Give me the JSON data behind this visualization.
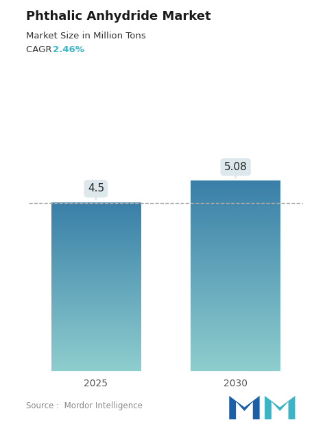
{
  "title": "Phthalic Anhydride Market",
  "subtitle": "Market Size in Million Tons",
  "cagr_label": "CAGR ",
  "cagr_value": "2.46%",
  "cagr_color": "#3ab5c6",
  "categories": [
    "2025",
    "2030"
  ],
  "values": [
    4.5,
    5.08
  ],
  "bar_top_color": "#3a7fa8",
  "bar_bottom_color": "#8ecece",
  "bar_width": 0.32,
  "dashed_line_y": 4.5,
  "dashed_line_color": "#aaaaaa",
  "source_text": "Source :  Mordor Intelligence",
  "source_color": "#888888",
  "bg_color": "#ffffff",
  "label_box_color": "#dde8ec",
  "label_text_color": "#222222",
  "ylim": [
    0,
    6.2
  ],
  "title_fontsize": 13,
  "subtitle_fontsize": 9.5,
  "cagr_fontsize": 9.5,
  "tick_fontsize": 10,
  "value_fontsize": 11,
  "source_fontsize": 8.5,
  "logo_color1": "#1a5fa8",
  "logo_color2": "#3ab5c6"
}
